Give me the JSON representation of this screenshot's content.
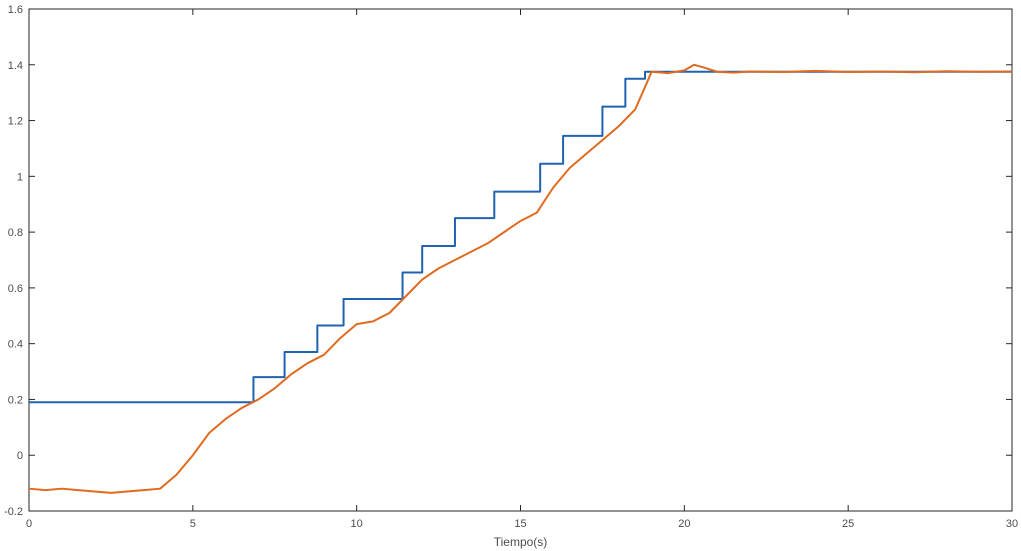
{
  "chart_data": {
    "type": "line",
    "xlabel": "Tiempo(s)",
    "ylabel": "",
    "xlim": [
      0,
      30
    ],
    "ylim": [
      -0.2,
      1.6
    ],
    "x_ticks": [
      0,
      5,
      10,
      15,
      20,
      25,
      30
    ],
    "y_ticks": [
      -0.2,
      0,
      0.2,
      0.4,
      0.6,
      0.8,
      1,
      1.2,
      1.4,
      1.6
    ],
    "x_tick_labels": [
      "0",
      "5",
      "10",
      "15",
      "20",
      "25",
      "30"
    ],
    "y_tick_labels": [
      "-0.2",
      "0",
      "0.2",
      "0.4",
      "0.6",
      "0.8",
      "1",
      "1.2",
      "1.4",
      "1.6"
    ],
    "grid": false,
    "box": true,
    "series": [
      {
        "color": "#1f63b0",
        "style": "step",
        "x": [
          0,
          6.85,
          7.8,
          8.8,
          9.6,
          11.4,
          12.0,
          13.0,
          14.2,
          15.6,
          16.3,
          17.5,
          18.2,
          18.8,
          30
        ],
        "y": [
          0.19,
          0.28,
          0.37,
          0.465,
          0.56,
          0.655,
          0.75,
          0.85,
          0.945,
          1.045,
          1.145,
          1.25,
          1.35,
          1.375,
          1.375
        ]
      },
      {
        "color": "#e06a1f",
        "style": "line",
        "x": [
          0,
          0.5,
          1,
          1.5,
          2,
          2.5,
          3,
          3.5,
          4,
          4.5,
          5,
          5.5,
          6,
          6.5,
          7,
          7.5,
          8,
          8.5,
          9,
          9.5,
          10,
          10.5,
          11,
          11.5,
          12,
          12.5,
          13,
          13.5,
          14,
          14.5,
          15,
          15.5,
          16,
          16.5,
          17,
          17.5,
          18,
          18.5,
          18.8,
          19,
          19.5,
          20,
          20.3,
          20.6,
          21,
          21.5,
          22,
          23,
          24,
          25,
          26,
          27,
          28,
          29,
          30
        ],
        "y": [
          -0.12,
          -0.125,
          -0.12,
          -0.125,
          -0.13,
          -0.135,
          -0.13,
          -0.125,
          -0.12,
          -0.07,
          0.0,
          0.08,
          0.13,
          0.17,
          0.2,
          0.24,
          0.29,
          0.33,
          0.36,
          0.42,
          0.47,
          0.48,
          0.51,
          0.57,
          0.63,
          0.67,
          0.7,
          0.73,
          0.76,
          0.8,
          0.84,
          0.87,
          0.96,
          1.03,
          1.08,
          1.13,
          1.18,
          1.24,
          1.32,
          1.375,
          1.37,
          1.38,
          1.4,
          1.39,
          1.375,
          1.372,
          1.376,
          1.374,
          1.378,
          1.374,
          1.376,
          1.373,
          1.377,
          1.375,
          1.376
        ]
      }
    ]
  }
}
